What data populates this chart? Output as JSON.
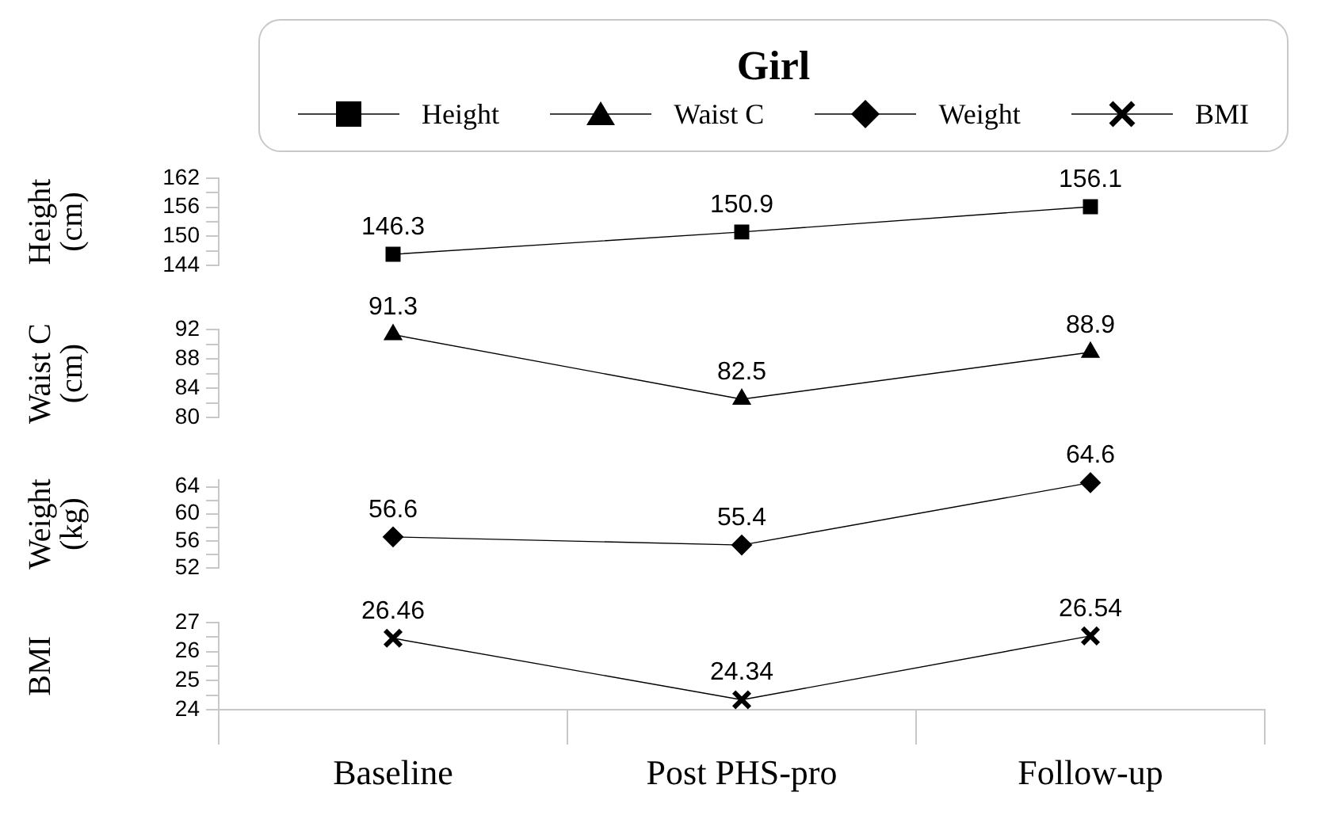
{
  "chart_data": [
    {
      "type": "line",
      "legend_title": "Girl",
      "legend": "top",
      "grid": false,
      "data_labels": true,
      "line_style": "solid",
      "tick_labels": "y",
      "categories": [
        "Baseline",
        "Post PHS-pro",
        "Follow-up"
      ],
      "series": [
        {
          "name": "Height",
          "color": "#000000",
          "marker": "square",
          "values": [
            146.3,
            150.9,
            156.1
          ]
        }
      ],
      "ylabel": "Height (cm)",
      "ylim": [
        144,
        162
      ],
      "yticks": [
        144,
        {
          "value": 147,
          "label": null
        },
        150,
        {
          "value": 153,
          "label": null
        },
        156,
        {
          "value": 159,
          "label": null
        },
        162
      ]
    },
    {
      "type": "line",
      "legend": "top",
      "grid": false,
      "data_labels": true,
      "line_style": "solid",
      "tick_labels": "y",
      "categories": [
        "Baseline",
        "Post PHS-pro",
        "Follow-up"
      ],
      "series": [
        {
          "name": "Waist C",
          "color": "#000000",
          "marker": "triangle",
          "values": [
            91.3,
            82.5,
            88.9
          ]
        }
      ],
      "ylabel": "Waist C (cm)",
      "ylim": [
        80,
        92
      ],
      "yticks": [
        80,
        {
          "value": 82,
          "label": null
        },
        84,
        {
          "value": 86,
          "label": null
        },
        88,
        {
          "value": 90,
          "label": null
        },
        92
      ]
    },
    {
      "type": "line",
      "legend": "top",
      "grid": false,
      "data_labels": true,
      "line_style": "solid",
      "tick_labels": "y",
      "categories": [
        "Baseline",
        "Post PHS-pro",
        "Follow-up"
      ],
      "series": [
        {
          "name": "Weight",
          "color": "#000000",
          "marker": "diamond",
          "values": [
            56.6,
            55.4,
            64.6
          ]
        }
      ],
      "ylabel": "Weight (kg)",
      "ylim": [
        52,
        65
      ],
      "yticks": [
        52,
        {
          "value": 54,
          "label": null
        },
        56,
        {
          "value": 58,
          "label": null
        },
        60,
        {
          "value": 62,
          "label": null
        },
        64
      ]
    },
    {
      "type": "line",
      "legend": "top",
      "grid": false,
      "data_labels": true,
      "line_style": "solid",
      "categories": [
        "Baseline",
        "Post PHS-pro",
        "Follow-up"
      ],
      "series": [
        {
          "name": "BMI",
          "color": "#000000",
          "marker": "cross",
          "values": [
            26.46,
            24.34,
            26.54
          ]
        }
      ],
      "ylabel": "BMI",
      "ylim": [
        24,
        27
      ],
      "yticks": [
        24,
        {
          "value": 24.5,
          "label": null
        },
        25,
        {
          "value": 25.5,
          "label": null
        },
        26,
        {
          "value": 26.5,
          "label": null
        },
        27
      ]
    }
  ]
}
